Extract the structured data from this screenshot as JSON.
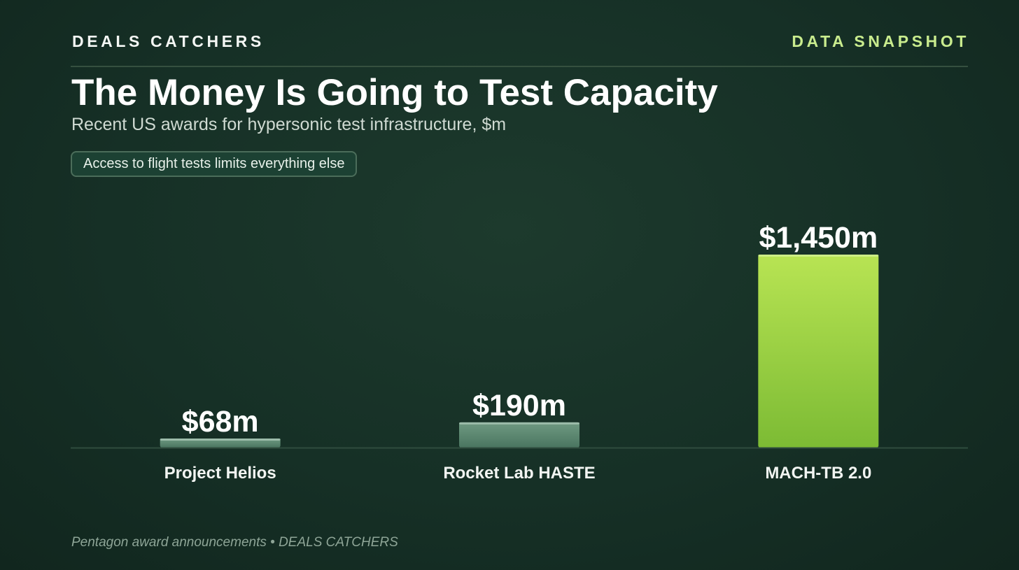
{
  "header": {
    "brand": "DEALS CATCHERS",
    "section_tag": "DATA SNAPSHOT"
  },
  "title": "The Money Is Going to Test Capacity",
  "subtitle": "Recent US awards for hypersonic test infrastructure, $m",
  "callout": "Access to flight tests limits everything else",
  "footer": {
    "source": "Pentagon award announcements • DEALS CATCHERS"
  },
  "colors": {
    "background": "#163026",
    "bar_muted": "#5e8a72",
    "bar_highlight": "#a8dc48",
    "brand_accent": "#c9ec8e"
  },
  "chart_data": {
    "type": "bar",
    "title": "The Money Is Going to Test Capacity",
    "subtitle": "Recent US awards for hypersonic test infrastructure, $m",
    "xlabel": "",
    "ylabel": "",
    "unit": "$m",
    "categories": [
      "Project Helios",
      "Rocket Lab HASTE",
      "MACH-TB 2.0"
    ],
    "values": [
      68,
      190,
      1450
    ],
    "value_labels": [
      "$68m",
      "$190m",
      "$1,450m"
    ],
    "highlight": [
      "MACH-TB 2.0"
    ],
    "ylim": [
      0,
      1450
    ],
    "grid": false,
    "legend": "none"
  }
}
